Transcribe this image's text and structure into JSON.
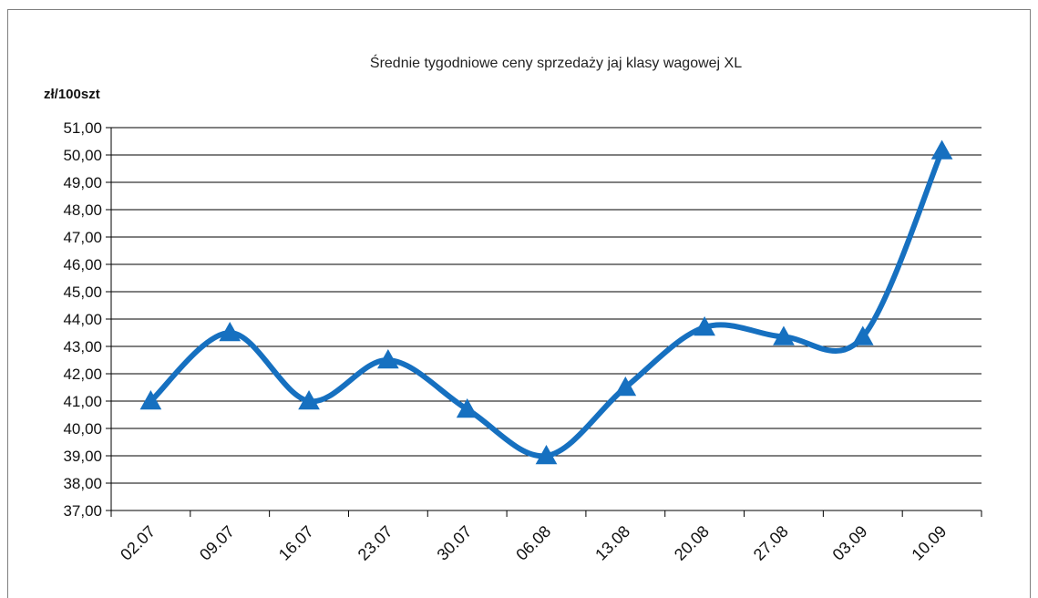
{
  "chart_data": {
    "type": "line",
    "title": "Średnie tygodniowe ceny sprzedaży jaj klasy wagowej  XL",
    "unit_label": "zł/100szt",
    "categories": [
      "02.07",
      "09.07",
      "16.07",
      "23.07",
      "30.07",
      "06.08",
      "13.08",
      "20.08",
      "27.08",
      "03.09",
      "10.09"
    ],
    "values": [
      41.0,
      43.5,
      41.0,
      42.5,
      40.7,
      39.0,
      41.5,
      43.7,
      43.35,
      43.35,
      50.15
    ],
    "ylim": [
      37,
      51
    ],
    "ytick_labels": [
      "37,00",
      "38,00",
      "39,00",
      "40,00",
      "41,00",
      "42,00",
      "43,00",
      "44,00",
      "45,00",
      "46,00",
      "47,00",
      "48,00",
      "49,00",
      "50,00",
      "51,00"
    ],
    "grid": true,
    "legend": "none",
    "line_color": "#1670c0",
    "marker": "triangle"
  }
}
